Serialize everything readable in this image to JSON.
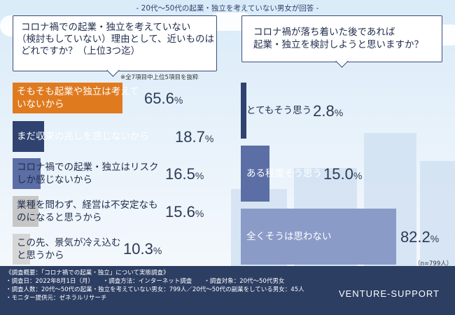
{
  "header": "- 20代～50代の起業・独立を考えていない男女が回答 -",
  "left": {
    "question": [
      "コロナ禍での起業・独立を考えていない",
      "（検討もしていない）理由として、近いものは",
      "どれですか？（上位3つ迄）"
    ],
    "note": "※全7項目中上位5項目を抜粋"
  },
  "right": {
    "question": [
      "コロナ禍が落ち着いた後であれば",
      "起業・独立を検討しようと思いますか？"
    ],
    "n_label": "（n=799人）"
  },
  "chart_data": [
    {
      "type": "bar",
      "orientation": "horizontal",
      "categories": [
        "そもそも起業や独立は考えていないから",
        "まだ収束の兆しを感じないから",
        "コロナ禍での起業・独立はリスクしか感じないから",
        "業種を問わず、経営は不安定なものになると思うから",
        "この先、景気が冷え込むと思うから"
      ],
      "values": [
        65.6,
        18.7,
        16.5,
        15.6,
        10.3
      ],
      "unit": "%",
      "colors": [
        "#e07a1f",
        "#2f4270",
        "#5b6ea5",
        "#c6c6c6",
        "#d6d6d6"
      ]
    },
    {
      "type": "bar",
      "orientation": "horizontal",
      "categories": [
        "とてもそう思う",
        "ある程度そう思う",
        "全くそうは思わない"
      ],
      "values": [
        2.8,
        15.0,
        82.2
      ],
      "unit": "%",
      "colors": [
        "#2f4270",
        "#5b6ea5",
        "#8b9bc8"
      ]
    }
  ],
  "footer": {
    "lines": [
      "《調査概要：「コロナ禍での起業・独立」について実態調査》",
      "・調査日：2022年8月1日（月）　　・調査方法：インターネット調査　　・調査対象：20代～50代男女",
      "・調査人数：20代～50代の起業・独立を考えていない男女：799人／20代～50代の副業をしている男女：45人",
      "・モニター提供元：ゼネラルリサーチ"
    ],
    "brand": "VENTURE-SUPPORT"
  }
}
